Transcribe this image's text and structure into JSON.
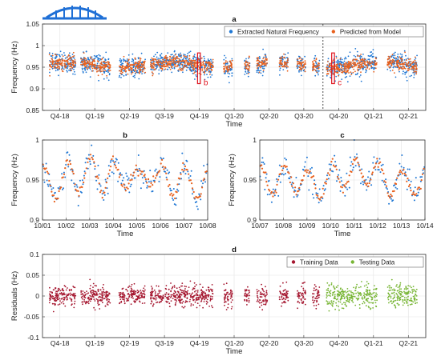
{
  "chart_data": [
    {
      "id": "a",
      "type": "scatter",
      "panel_label": "a",
      "xlabel": "Time",
      "ylabel": "Frequency (Hz)",
      "ylim": [
        0.85,
        1.05
      ],
      "yticks": [
        0.85,
        0.9,
        0.95,
        1,
        1.05
      ],
      "ytick_labels": [
        "0.85",
        "0.9",
        "0.95",
        "1",
        "1.05"
      ],
      "xlim": [
        0,
        11
      ],
      "xtick_labels": [
        "Q4-18",
        "Q1-19",
        "Q2-19",
        "Q3-19",
        "Q4-19",
        "Q1-20",
        "Q2-20",
        "Q3-20",
        "Q4-20",
        "Q1-21",
        "Q2-21"
      ],
      "grid": true,
      "legend_position": "top-right",
      "series": [
        {
          "name": "Extracted Natural Frequency",
          "color": "#1f77d4",
          "center": 0.955,
          "spread_sd": 0.012,
          "range": [
            0.88,
            1.04
          ]
        },
        {
          "name": "Predicted from Model",
          "color": "#e8601c",
          "center": 0.955,
          "spread_sd": 0.008,
          "range": [
            0.93,
            0.985
          ]
        }
      ],
      "data_segments": [
        [
          0.2,
          0.95
        ],
        [
          1.1,
          1.95
        ],
        [
          2.2,
          2.95
        ],
        [
          3.1,
          4.9
        ],
        [
          5.2,
          5.45
        ],
        [
          5.8,
          5.95
        ],
        [
          6.15,
          6.45
        ],
        [
          6.8,
          7.05
        ],
        [
          7.3,
          7.55
        ],
        [
          7.75,
          7.95
        ],
        [
          8.15,
          9.6
        ],
        [
          9.9,
          10.75
        ]
      ],
      "vertical_marker_x": 8.05,
      "annotations": [
        {
          "label": "b",
          "x_range": [
            4.45,
            4.53
          ],
          "y_range": [
            0.912,
            0.983
          ]
        },
        {
          "label": "c",
          "x_range": [
            8.3,
            8.38
          ],
          "y_range": [
            0.912,
            0.983
          ]
        }
      ]
    },
    {
      "id": "b",
      "type": "scatter",
      "panel_label": "b",
      "xlabel": "Time",
      "ylabel": "Frequency (Hz)",
      "ylim": [
        0.9,
        1.0
      ],
      "yticks": [
        0.9,
        0.95,
        1
      ],
      "ytick_labels": [
        "0.9",
        "0.95",
        "1"
      ],
      "xlim": [
        0,
        7
      ],
      "xtick_labels": [
        "10/01",
        "10/02",
        "10/03",
        "10/04",
        "10/05",
        "10/06",
        "10/07",
        "10/08"
      ],
      "grid": true,
      "series": [
        {
          "name": "Extracted Natural Frequency",
          "color": "#1f77d4"
        },
        {
          "name": "Predicted from Model",
          "color": "#e8601c"
        }
      ],
      "daily_peaks_hz": [
        0.966,
        0.978,
        0.979,
        0.967,
        0.962,
        0.972,
        0.965
      ],
      "daily_troughs_hz": [
        0.925,
        0.935,
        0.933,
        0.94,
        0.945,
        0.93,
        0.925
      ]
    },
    {
      "id": "c",
      "type": "scatter",
      "panel_label": "c",
      "xlabel": "Time",
      "ylabel": "Frequency (Hz)",
      "ylim": [
        0.9,
        1.0
      ],
      "yticks": [
        0.9,
        0.95,
        1
      ],
      "ytick_labels": [
        "0.9",
        "0.95",
        "1"
      ],
      "xlim": [
        0,
        7
      ],
      "xtick_labels": [
        "10/07",
        "10/08",
        "10/09",
        "10/10",
        "10/11",
        "10/12",
        "10/13",
        "10/14"
      ],
      "grid": true,
      "series": [
        {
          "name": "Extracted Natural Frequency",
          "color": "#1f77d4"
        },
        {
          "name": "Predicted from Model",
          "color": "#e8601c"
        }
      ],
      "daily_peaks_hz": [
        0.968,
        0.966,
        0.962,
        0.972,
        0.975,
        0.968,
        0.962
      ],
      "daily_troughs_hz": [
        0.93,
        0.935,
        0.928,
        0.94,
        0.945,
        0.93,
        0.932
      ]
    },
    {
      "id": "d",
      "type": "scatter",
      "panel_label": "d",
      "xlabel": "Time",
      "ylabel": "Residuals (Hz)",
      "ylim": [
        -0.1,
        0.1
      ],
      "yticks": [
        -0.1,
        -0.05,
        0,
        0.05,
        0.1
      ],
      "ytick_labels": [
        "-0.1",
        "-0.05",
        "0",
        "0.05",
        "0.1"
      ],
      "xlim": [
        0,
        11
      ],
      "xtick_labels": [
        "Q4-18",
        "Q1-19",
        "Q2-19",
        "Q3-19",
        "Q4-19",
        "Q1-20",
        "Q2-20",
        "Q3-20",
        "Q4-20",
        "Q1-21",
        "Q2-21"
      ],
      "grid": true,
      "legend_position": "top-right",
      "series": [
        {
          "name": "Training Data",
          "color": "#a5162f",
          "x_range": [
            0.2,
            7.95
          ],
          "residual_sd": 0.012
        },
        {
          "name": "Testing Data",
          "color": "#77b534",
          "x_range": [
            8.15,
            10.75
          ],
          "residual_sd": 0.014
        }
      ],
      "data_segments": [
        [
          0.2,
          0.95
        ],
        [
          1.1,
          1.95
        ],
        [
          2.2,
          2.95
        ],
        [
          3.1,
          4.9
        ],
        [
          5.2,
          5.45
        ],
        [
          5.8,
          5.95
        ],
        [
          6.15,
          6.45
        ],
        [
          6.8,
          7.05
        ],
        [
          7.3,
          7.55
        ],
        [
          7.75,
          7.95
        ],
        [
          8.15,
          9.6
        ],
        [
          9.9,
          10.75
        ]
      ]
    }
  ],
  "icon": {
    "name": "arch-bridge-icon",
    "color": "#1e6fd6"
  }
}
